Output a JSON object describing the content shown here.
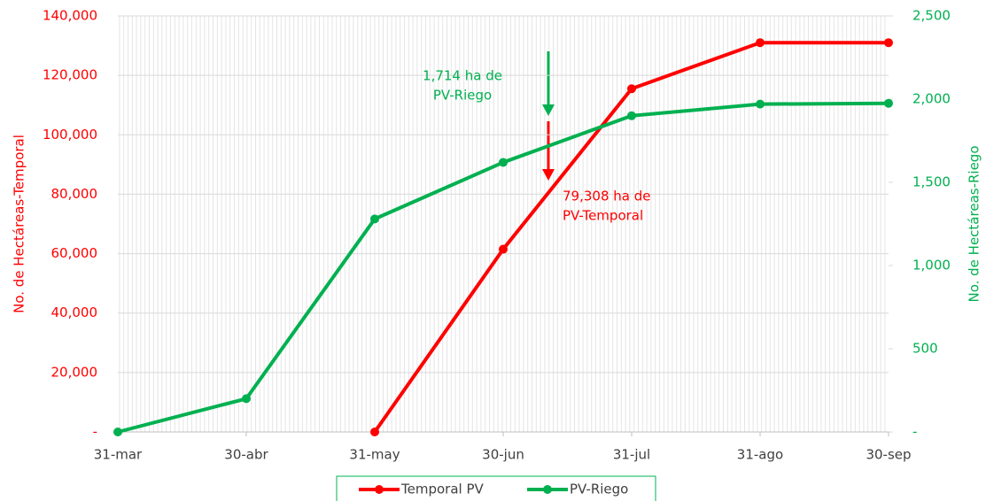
{
  "chart_data": {
    "type": "line",
    "categories": [
      "31-mar",
      "30-abr",
      "31-may",
      "30-jun",
      "31-jul",
      "31-ago",
      "30-sep"
    ],
    "series": [
      {
        "name": "Temporal PV",
        "color": "#ff0000",
        "values": [
          null,
          null,
          0,
          61500,
          115500,
          131000,
          131000
        ]
      },
      {
        "name": "PV-Riego",
        "color": "#00b050",
        "axis": "y2",
        "values": [
          0,
          200,
          1280,
          1620,
          1900,
          1970,
          1975
        ]
      }
    ],
    "ylabel": "No. de Hectáreas-Temporal",
    "y2label": "No. de Hectáreas-Riego",
    "ylim": [
      0,
      140000
    ],
    "yticks": [
      {
        "value": 0,
        "label": "-"
      },
      {
        "value": 20000,
        "label": "20,000"
      },
      {
        "value": 40000,
        "label": "40,000"
      },
      {
        "value": 60000,
        "label": "60,000"
      },
      {
        "value": 80000,
        "label": "80,000"
      },
      {
        "value": 100000,
        "label": "100,000"
      },
      {
        "value": 120000,
        "label": "120,000"
      },
      {
        "value": 140000,
        "label": "140,000"
      }
    ],
    "y2lim": [
      0,
      2500
    ],
    "y2ticks": [
      {
        "value": 0,
        "label": "-"
      },
      500,
      {
        "value": 1000,
        "label": "1,000"
      },
      {
        "value": 1500,
        "label": "1,500"
      },
      {
        "value": 2000,
        "label": "2,000"
      },
      {
        "value": 2500,
        "label": "2,500"
      }
    ],
    "annotations": [
      {
        "lines": [
          "1,714 ha de",
          "PV-Riego"
        ],
        "color": "#00b050"
      },
      {
        "lines": [
          "79,308 ha de",
          "PV-Temporal"
        ],
        "color": "#ff0000"
      }
    ],
    "legend": "bottom"
  }
}
